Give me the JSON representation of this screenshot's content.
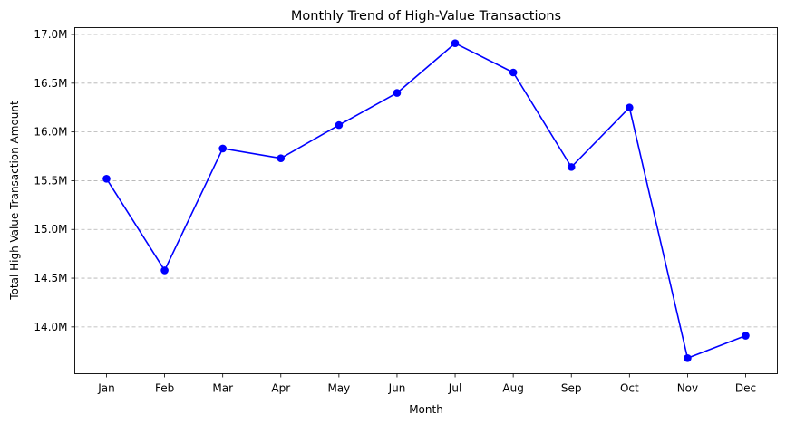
{
  "chart_data": {
    "type": "line",
    "title": "Monthly Trend of High-Value Transactions",
    "xlabel": "Month",
    "ylabel": "Total High-Value Transaction Amount",
    "categories": [
      "Jan",
      "Feb",
      "Mar",
      "Apr",
      "May",
      "Jun",
      "Jul",
      "Aug",
      "Sep",
      "Oct",
      "Nov",
      "Dec"
    ],
    "series": [
      {
        "values": [
          15.52,
          14.58,
          15.83,
          15.73,
          16.07,
          16.4,
          16.91,
          16.61,
          15.64,
          16.25,
          13.68,
          13.91
        ],
        "color": "#0000ff",
        "marker": "circle"
      }
    ],
    "yticks": [
      {
        "value": 14.0,
        "label": "14.0M"
      },
      {
        "value": 14.5,
        "label": "14.5M"
      },
      {
        "value": 15.0,
        "label": "15.0M"
      },
      {
        "value": 15.5,
        "label": "15.5M"
      },
      {
        "value": 16.0,
        "label": "16.0M"
      },
      {
        "value": 16.5,
        "label": "16.5M"
      },
      {
        "value": 17.0,
        "label": "17.0M"
      }
    ],
    "ylim": [
      13.52,
      17.07
    ],
    "y_units": "millions",
    "grid": "y-axis, dashed",
    "legend": "none"
  }
}
